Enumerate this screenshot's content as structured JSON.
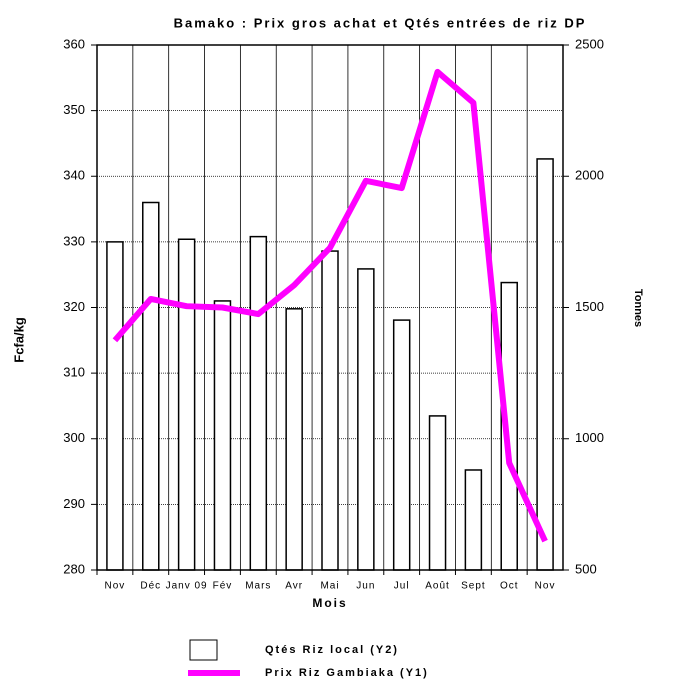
{
  "chart_data": {
    "type": "bar-line",
    "title": "Bamako : Prix gros achat et Qtés entrées de riz DP",
    "x_label": "Mois",
    "y_label": "Fcfa/kg",
    "y2_label": "Tonnes",
    "categories": [
      "Nov",
      "Déc",
      "Janv 09",
      "Fév",
      "Mars",
      "Avr",
      "Mai",
      "Jun",
      "Jul",
      "Août",
      "Sept",
      "Oct",
      "Nov"
    ],
    "series": [
      {
        "name": "Qtés Riz local (Y2)",
        "type": "bar",
        "axis": "y2",
        "color": "#ffffff",
        "values": [
          1750,
          1900,
          1760,
          1525,
          1770,
          1495,
          1715,
          1647,
          1452,
          1087,
          881,
          1595,
          2066
        ]
      },
      {
        "name": "Prix Riz Gambiaka (Y1)",
        "type": "line",
        "axis": "y",
        "color": "#ff00ff",
        "values": [
          315,
          321.3,
          320.2,
          320,
          319,
          323.4,
          329.1,
          339.3,
          338.2,
          355.9,
          351.2,
          296.3,
          284.4
        ]
      }
    ],
    "ylim": [
      280,
      360
    ],
    "yticks": [
      280,
      290,
      300,
      310,
      320,
      330,
      340,
      350,
      360
    ],
    "y2lim": [
      500,
      2500
    ],
    "y2ticks": [
      500,
      1000,
      1500,
      2000,
      2500
    ],
    "grid": true
  }
}
